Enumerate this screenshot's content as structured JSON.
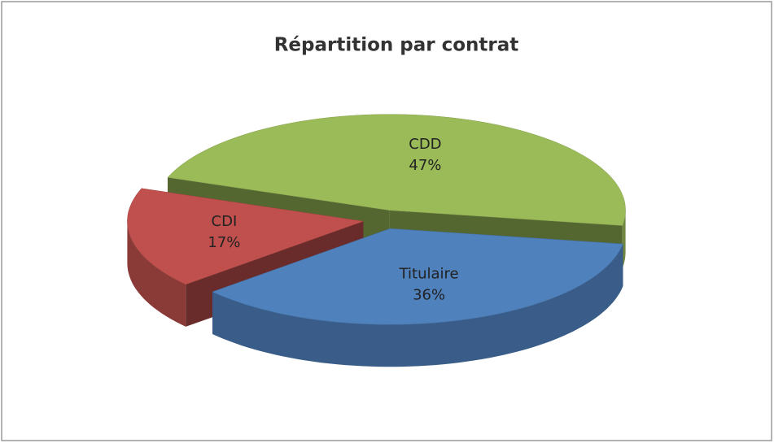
{
  "chart_data": {
    "type": "pie",
    "title": "Répartition par contrat",
    "categories": [
      "CDD",
      "Titulaire",
      "CDI"
    ],
    "values": [
      47,
      36,
      17
    ],
    "value_labels": [
      "47%",
      "36%",
      "17%"
    ],
    "colors": [
      "#9bbb59",
      "#4f81bd",
      "#c0504d"
    ]
  }
}
